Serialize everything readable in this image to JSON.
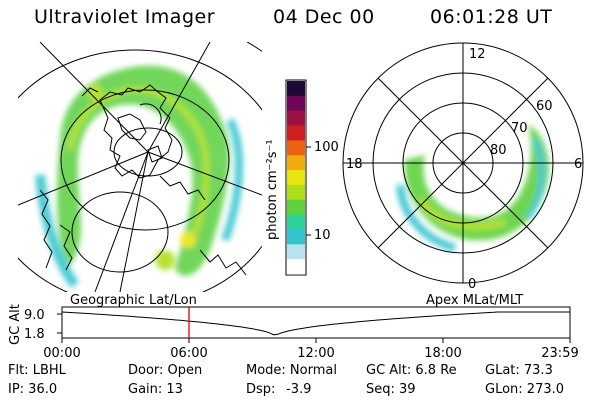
{
  "header": {
    "instrument": "Ultraviolet Imager",
    "date": "04 Dec 00",
    "time": "06:01:28 UT"
  },
  "colorbar": {
    "unit_label": "photon cm⁻²s⁻¹",
    "ticks": [
      "100",
      "10"
    ],
    "colors": [
      "#ffffff",
      "#b9e3ef",
      "#34c3cf",
      "#2ed09c",
      "#5fd13e",
      "#aede1a",
      "#e7e60c",
      "#f3ab0b",
      "#ec6212",
      "#cf1f1f",
      "#9e1145",
      "#6d0858",
      "#1f0838"
    ]
  },
  "geo_panel": {
    "title": "Geographic Lat/Lon"
  },
  "polar_panel": {
    "title": "Apex MLat/MLT",
    "mlt_labels": {
      "top": "12",
      "right": "6",
      "bottom": "0",
      "left": "18"
    },
    "lat_labels": [
      "60",
      "70",
      "80"
    ]
  },
  "altitude_plot": {
    "ylabel": "GC Alt",
    "y_ticks": [
      "9.0",
      "1.8"
    ],
    "x_ticks": [
      "00:00",
      "06:00",
      "12:00",
      "18:00",
      "23:59"
    ],
    "current_time_fraction": 0.25,
    "marker_color": "#e00000"
  },
  "status": {
    "row1": {
      "filter": "Flt: LBHL",
      "door": "Door: Open",
      "mode": "Mode: Normal",
      "gc_alt": "GC Alt: 6.8 Re",
      "glat": "GLat: 73.3"
    },
    "row2": {
      "ip": "IP: 36.0",
      "gain": "Gain: 13",
      "dsp_label": "Dsp:",
      "dsp_value": "-3.9",
      "seq": "Seq: 39",
      "glon": "GLon: 273.0"
    }
  }
}
